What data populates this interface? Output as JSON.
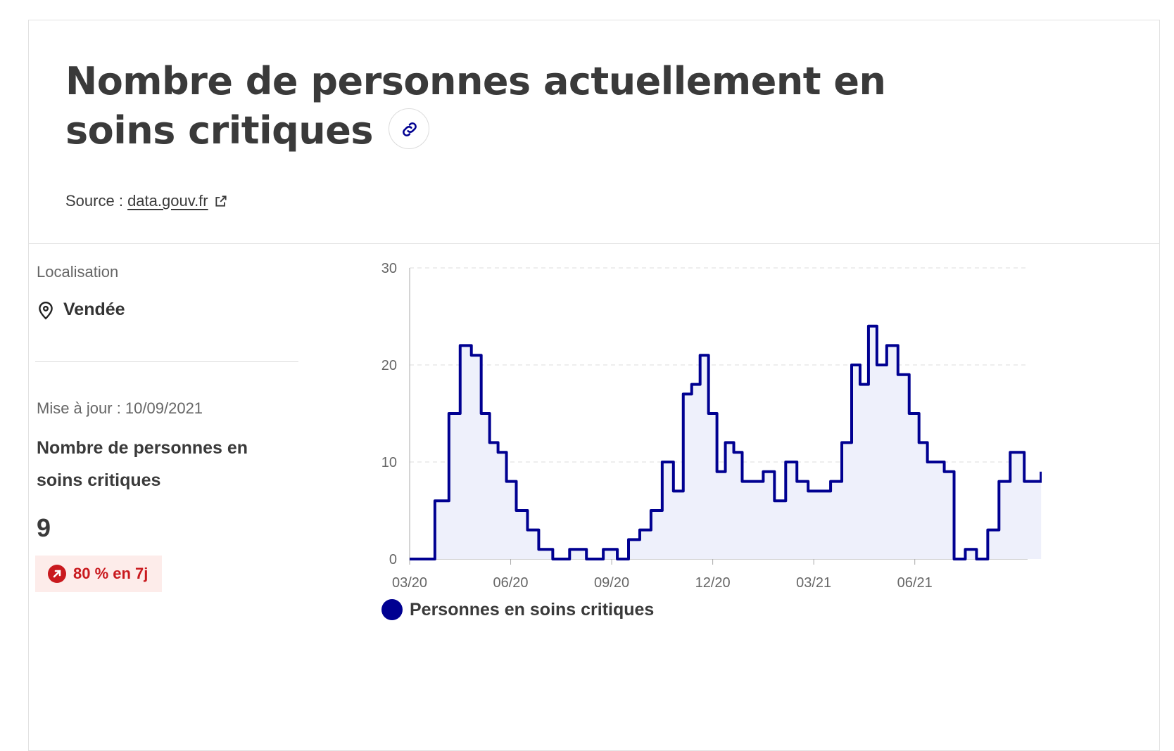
{
  "header": {
    "title": "Nombre de personnes actuellement en soins critiques",
    "source_prefix": "Source :",
    "source_link": "data.gouv.fr"
  },
  "location": {
    "label": "Localisation",
    "value": "Vendée"
  },
  "metric": {
    "update": "Mise à jour : 10/09/2021",
    "title": "Nombre de personnes en soins critiques",
    "value": "9",
    "trend": "80 % en 7j"
  },
  "colors": {
    "accent": "#000091",
    "trend_bg": "#fdecea",
    "trend_text": "#c9191e"
  },
  "icons": [
    "link-icon",
    "external-link-icon",
    "map-pin-icon",
    "arrow-up-right-icon"
  ],
  "chart_data": {
    "type": "line",
    "title": "",
    "xlabel": "",
    "ylabel": "",
    "ylim": [
      0,
      30
    ],
    "yticks": [
      "0",
      "10",
      "20",
      "30"
    ],
    "xticks": [
      "03/20",
      "06/20",
      "09/20",
      "12/20",
      "03/21",
      "06/21"
    ],
    "grid": true,
    "legend_position": "bottom",
    "series": [
      {
        "name": "Personnes en soins critiques",
        "color": "#000091",
        "x": [
          "03/20",
          "03/20",
          "04/20",
          "04/20",
          "04/20",
          "05/20",
          "05/20",
          "05/20",
          "05/20",
          "06/20",
          "06/20",
          "06/20",
          "07/20",
          "07/20",
          "08/20",
          "08/20",
          "09/20",
          "09/20",
          "09/20",
          "10/20",
          "10/20",
          "10/20",
          "11/20",
          "11/20",
          "11/20",
          "11/20",
          "12/20",
          "12/20",
          "12/20",
          "12/20",
          "01/21",
          "01/21",
          "01/21",
          "02/21",
          "02/21",
          "02/21",
          "03/21",
          "03/21",
          "03/21",
          "04/21",
          "04/21",
          "04/21",
          "04/21",
          "05/21",
          "05/21",
          "05/21",
          "06/21",
          "06/21",
          "06/21",
          "06/21",
          "07/21",
          "07/21",
          "07/21",
          "08/21",
          "08/21",
          "08/21",
          "09/21",
          "09/21"
        ],
        "y": [
          0,
          6,
          15,
          22,
          21,
          15,
          12,
          11,
          8,
          5,
          3,
          1,
          0,
          1,
          0,
          1,
          0,
          2,
          3,
          5,
          10,
          7,
          17,
          18,
          21,
          15,
          9,
          12,
          11,
          8,
          8,
          9,
          6,
          10,
          8,
          7,
          7,
          8,
          12,
          20,
          18,
          24,
          20,
          22,
          19,
          15,
          12,
          10,
          10,
          9,
          0,
          1,
          0,
          3,
          8,
          11,
          8,
          9
        ]
      }
    ]
  }
}
